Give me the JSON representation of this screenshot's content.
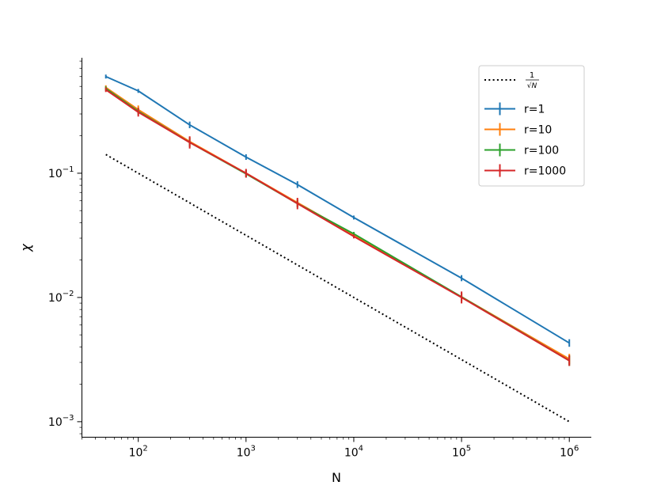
{
  "chart_data": {
    "type": "line",
    "xlabel": "N",
    "ylabel": "χ",
    "xscale": "log",
    "yscale": "log",
    "xlim": [
      30,
      1600000
    ],
    "ylim": [
      0.00075,
      0.85
    ],
    "x_ticks": [
      {
        "value": 100,
        "base": "10",
        "exp": "2"
      },
      {
        "value": 1000,
        "base": "10",
        "exp": "3"
      },
      {
        "value": 10000,
        "base": "10",
        "exp": "4"
      },
      {
        "value": 100000,
        "base": "10",
        "exp": "5"
      },
      {
        "value": 1000000,
        "base": "10",
        "exp": "6"
      }
    ],
    "y_ticks": [
      {
        "value": 0.001,
        "base": "10",
        "exp": "−3"
      },
      {
        "value": 0.01,
        "base": "10",
        "exp": "−2"
      },
      {
        "value": 0.1,
        "base": "10",
        "exp": "−1"
      }
    ],
    "reference": {
      "legend_label": {
        "numerator": "1",
        "denominator": "√N"
      },
      "style": "dotted",
      "color": "#000000",
      "x": [
        50,
        1000000
      ],
      "y": [
        0.1414,
        0.001
      ]
    },
    "series": [
      {
        "name": "r=1",
        "color": "#1f77b4",
        "x": [
          50,
          100,
          300,
          1000,
          3000,
          10000,
          100000,
          1000000
        ],
        "y": [
          0.6,
          0.46,
          0.245,
          0.135,
          0.081,
          0.044,
          0.0143,
          0.0043
        ],
        "err": [
          0.01,
          0.015,
          0.015,
          0.007,
          0.005,
          0,
          0.0008,
          0.0003
        ]
      },
      {
        "name": "r=10",
        "color": "#ff7f0e",
        "x": [
          50,
          100,
          300,
          1000,
          3000,
          10000,
          100000,
          1000000
        ],
        "y": [
          0.49,
          0.325,
          0.18,
          0.1,
          0.058,
          0.032,
          0.0101,
          0.0032
        ],
        "err": [
          0.02,
          0.025,
          0.015,
          0.006,
          0.004,
          0,
          0.0008,
          0.0003
        ]
      },
      {
        "name": "r=100",
        "color": "#2ca02c",
        "x": [
          50,
          100,
          300,
          1000,
          3000,
          10000,
          100000,
          1000000
        ],
        "y": [
          0.48,
          0.315,
          0.177,
          0.099,
          0.057,
          0.0325,
          0.0101,
          0.0031
        ],
        "err": [
          0.02,
          0.02,
          0.015,
          0.007,
          0.004,
          0,
          0.0008,
          0.0003
        ]
      },
      {
        "name": "r=1000",
        "color": "#d62728",
        "x": [
          50,
          100,
          300,
          1000,
          3000,
          10000,
          100000,
          1000000
        ],
        "y": [
          0.47,
          0.31,
          0.177,
          0.1,
          0.057,
          0.031,
          0.01,
          0.0031
        ],
        "err": [
          0.02,
          0.025,
          0.02,
          0.008,
          0.006,
          0,
          0.0011,
          0.0003
        ]
      }
    ],
    "grid": false,
    "legend_position": "top-right"
  }
}
